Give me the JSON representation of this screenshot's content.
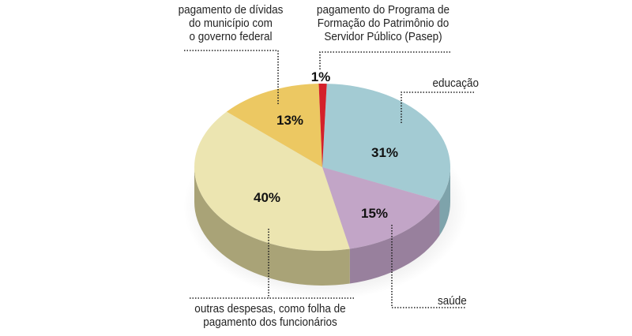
{
  "chart_data": {
    "type": "pie",
    "style": "3d",
    "slices": [
      {
        "label": "educação",
        "value": 31,
        "value_label": "31%",
        "color": "#a3cbd3",
        "side_color": "#7ea3ab"
      },
      {
        "label": "saúde",
        "value": 15,
        "value_label": "15%",
        "color": "#c2a5c7",
        "side_color": "#98809d"
      },
      {
        "label": "outras despesas, como folha de pagamento dos funcionários",
        "value": 40,
        "value_label": "40%",
        "color": "#ece5b1",
        "side_color": "#a9a377"
      },
      {
        "label": "pagamento de dívidas do município com o governo federal",
        "value": 13,
        "value_label": "13%",
        "color": "#ecc862",
        "side_color": "#b2964a"
      },
      {
        "label": "pagamento do Programa de Formação do Patrimônio do Servidor Público (Pasep)",
        "value": 1,
        "value_label": "1%",
        "color": "#d4202a",
        "side_color": "#9a1820"
      }
    ],
    "label_lines": {
      "educacao": [
        "educação"
      ],
      "saude": [
        "saúde"
      ],
      "outras": [
        "outras despesas, como folha de",
        "pagamento dos funcionários"
      ],
      "dividas": [
        "pagamento de dívidas",
        "do município com",
        "o governo federal"
      ],
      "pasep": [
        "pagamento do Programa de",
        "Formação do Patrimônio do",
        "Servidor Público (Pasep)"
      ]
    }
  }
}
